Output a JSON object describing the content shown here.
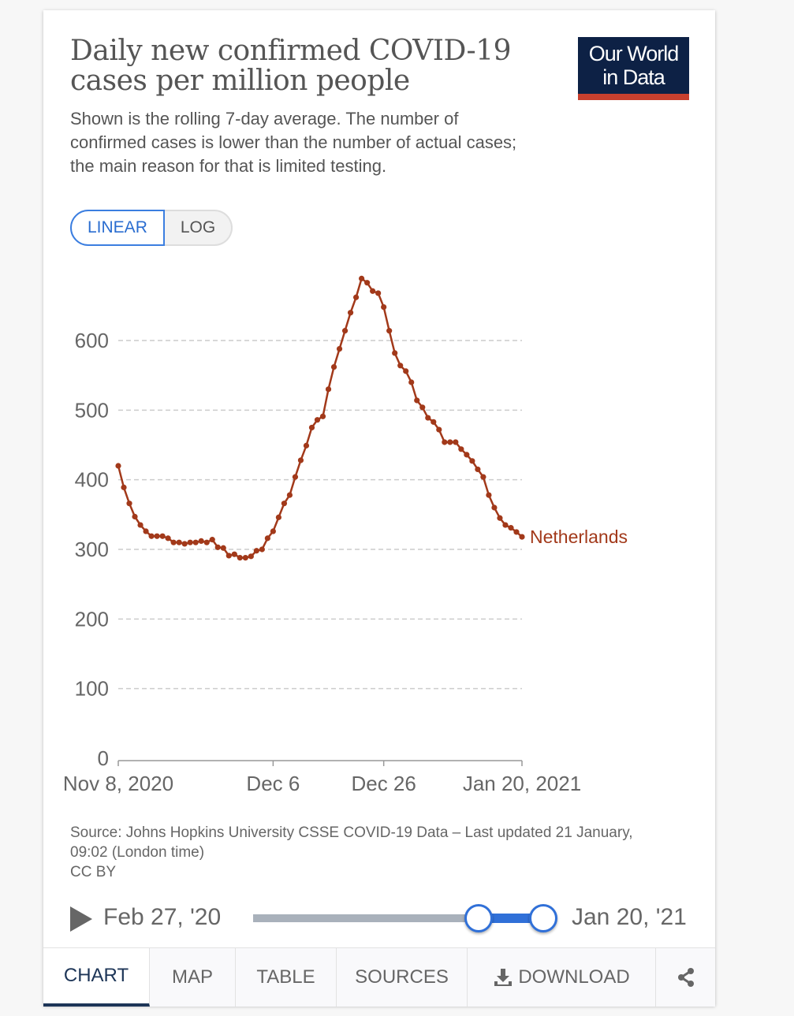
{
  "header": {
    "title": "Daily new confirmed COVID-19 cases per million people",
    "subtitle": "Shown is the rolling 7-day average. The number of confirmed cases is lower than the number of actual cases; the main reason for that is limited testing.",
    "logo_line1": "Our World",
    "logo_line2": "in Data"
  },
  "scale_toggle": {
    "linear": "LINEAR",
    "log": "LOG",
    "selected": "LINEAR"
  },
  "colors": {
    "series": "#a2391a",
    "accent": "#3070d8",
    "logo_bg": "#0d2145",
    "logo_bar": "#c8402e"
  },
  "chart_data": {
    "type": "line",
    "title": "Daily new confirmed COVID-19 cases per million people",
    "xlabel": "",
    "ylabel": "",
    "x_start": "2020-11-08",
    "x_end": "2021-01-20",
    "x_ticks": [
      {
        "day": 0,
        "label": "Nov 8, 2020"
      },
      {
        "day": 28,
        "label": "Dec 6"
      },
      {
        "day": 48,
        "label": "Dec 26"
      },
      {
        "day": 73,
        "label": "Jan 20, 2021"
      }
    ],
    "y_ticks": [
      0,
      100,
      200,
      300,
      400,
      500,
      600
    ],
    "ylim": [
      0,
      700
    ],
    "grid": true,
    "legend": "right-end-label",
    "series": [
      {
        "name": "Netherlands",
        "values": [
          420,
          389,
          366,
          347,
          335,
          326,
          319,
          319,
          319,
          316,
          310,
          310,
          308,
          310,
          310,
          312,
          310,
          314,
          303,
          302,
          291,
          293,
          288,
          288,
          290,
          298,
          300,
          316,
          326,
          346,
          366,
          378,
          404,
          428,
          449,
          475,
          486,
          491,
          530,
          562,
          588,
          614,
          640,
          662,
          689,
          683,
          671,
          668,
          648,
          614,
          582,
          564,
          556,
          540,
          514,
          504,
          489,
          483,
          472,
          454,
          454,
          454,
          444,
          436,
          427,
          415,
          404,
          378,
          360,
          345,
          335,
          331,
          325,
          318
        ]
      }
    ]
  },
  "footer": {
    "source": "Source: Johns Hopkins University CSSE COVID-19 Data – Last updated 21 January, 09:02 (London time)",
    "license": "CC BY"
  },
  "timeline": {
    "start": "Feb 27, '20",
    "end": "Jan 20, '21",
    "range_start_fraction": 0.77,
    "range_end_fraction": 1.0
  },
  "tabs": [
    {
      "label": "CHART"
    },
    {
      "label": "MAP"
    },
    {
      "label": "TABLE"
    },
    {
      "label": "SOURCES"
    },
    {
      "label": "DOWNLOAD"
    }
  ]
}
